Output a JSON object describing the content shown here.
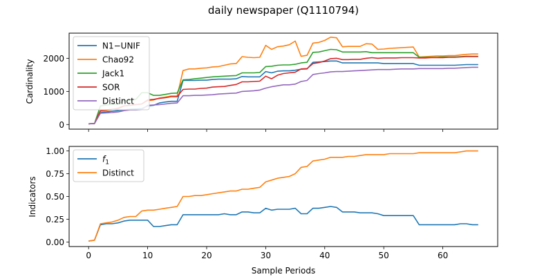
{
  "figure": {
    "title": "daily newspaper (Q1110794)",
    "xlabel": "Sample Periods"
  },
  "colors": {
    "blue": "#1f77b4",
    "orange": "#ff7f0e",
    "green": "#2ca02c",
    "red": "#d62728",
    "purple": "#9467bd"
  },
  "chart_data": [
    {
      "type": "line",
      "title": "daily newspaper (Q1110794)",
      "xlabel": "",
      "ylabel": "Cardinality",
      "xlim": [
        -3.3,
        69.3
      ],
      "ylim": [
        -140,
        2760
      ],
      "xticks": [
        0,
        10,
        20,
        30,
        40,
        50,
        60
      ],
      "xticklabels": [
        "",
        "",
        "",
        "",
        "",
        "",
        ""
      ],
      "yticks": [
        0,
        1000,
        2000
      ],
      "yticklabels": [
        "0",
        "1000",
        "2000"
      ],
      "grid": false,
      "legend_position": "upper-left",
      "x_start": 0,
      "series": [
        {
          "name": "N1−UNIF",
          "color": "#1f77b4",
          "values": [
            20,
            30,
            360,
            380,
            400,
            420,
            440,
            460,
            470,
            480,
            560,
            580,
            650,
            680,
            700,
            700,
            1330,
            1330,
            1330,
            1340,
            1340,
            1360,
            1370,
            1370,
            1370,
            1380,
            1450,
            1440,
            1440,
            1440,
            1600,
            1560,
            1610,
            1620,
            1620,
            1640,
            1670,
            1680,
            1880,
            1890,
            1900,
            1920,
            1920,
            1860,
            1860,
            1860,
            1860,
            1860,
            1860,
            1860,
            1840,
            1840,
            1840,
            1840,
            1840,
            1840,
            1790,
            1790,
            1790,
            1790,
            1790,
            1790,
            1790,
            1800,
            1810,
            1810,
            1810
          ]
        },
        {
          "name": "Chao92",
          "color": "#ff7f0e",
          "values": [
            20,
            30,
            400,
            420,
            450,
            500,
            560,
            580,
            600,
            620,
            720,
            740,
            800,
            830,
            860,
            860,
            1630,
            1680,
            1680,
            1700,
            1710,
            1740,
            1750,
            1790,
            1830,
            1840,
            2050,
            2030,
            2020,
            2030,
            2390,
            2270,
            2350,
            2370,
            2410,
            2520,
            2060,
            2090,
            2460,
            2480,
            2540,
            2640,
            2620,
            2350,
            2360,
            2360,
            2360,
            2440,
            2430,
            2270,
            2280,
            2300,
            2310,
            2320,
            2330,
            2340,
            2040,
            2050,
            2060,
            2070,
            2070,
            2080,
            2080,
            2100,
            2120,
            2130,
            2130
          ]
        },
        {
          "name": "Jack1",
          "color": "#2ca02c",
          "values": [
            20,
            30,
            560,
            590,
            610,
            620,
            720,
            730,
            760,
            960,
            960,
            880,
            880,
            910,
            940,
            950,
            1350,
            1360,
            1380,
            1400,
            1420,
            1440,
            1450,
            1460,
            1470,
            1480,
            1560,
            1560,
            1560,
            1570,
            1750,
            1760,
            1790,
            1800,
            1800,
            1820,
            1860,
            1880,
            2180,
            2190,
            2230,
            2270,
            2260,
            2190,
            2190,
            2190,
            2190,
            2200,
            2170,
            2170,
            2170,
            2170,
            2170,
            2170,
            2170,
            2170,
            2030,
            2030,
            2030,
            2030,
            2040,
            2040,
            2040,
            2050,
            2060,
            2060,
            2060
          ]
        },
        {
          "name": "SOR",
          "color": "#d62728",
          "values": [
            20,
            30,
            420,
            440,
            460,
            480,
            560,
            580,
            600,
            620,
            740,
            760,
            790,
            810,
            840,
            840,
            1060,
            1070,
            1070,
            1090,
            1100,
            1130,
            1140,
            1150,
            1180,
            1210,
            1290,
            1290,
            1300,
            1310,
            1460,
            1380,
            1490,
            1540,
            1560,
            1580,
            1680,
            1690,
            1840,
            1870,
            1920,
            1990,
            2000,
            1960,
            1960,
            1970,
            1970,
            2000,
            2020,
            2000,
            2010,
            2010,
            2010,
            2020,
            2020,
            2020,
            2010,
            2010,
            2020,
            2020,
            2020,
            2030,
            2030,
            2040,
            2050,
            2050,
            2050
          ]
        },
        {
          "name": "Distinct",
          "color": "#9467bd",
          "values": [
            20,
            30,
            340,
            350,
            360,
            380,
            420,
            440,
            440,
            450,
            580,
            590,
            600,
            620,
            640,
            650,
            870,
            870,
            880,
            880,
            890,
            900,
            920,
            930,
            940,
            950,
            1000,
            1010,
            1020,
            1040,
            1100,
            1140,
            1170,
            1200,
            1200,
            1220,
            1300,
            1330,
            1510,
            1540,
            1560,
            1590,
            1600,
            1600,
            1610,
            1620,
            1630,
            1640,
            1650,
            1660,
            1660,
            1660,
            1670,
            1680,
            1680,
            1680,
            1690,
            1690,
            1690,
            1690,
            1690,
            1700,
            1700,
            1710,
            1720,
            1730,
            1730
          ]
        }
      ]
    },
    {
      "type": "line",
      "title": "",
      "xlabel": "Sample Periods",
      "ylabel": "Indicators",
      "xlim": [
        -3.3,
        69.3
      ],
      "ylim": [
        -0.05,
        1.05
      ],
      "xticks": [
        0,
        10,
        20,
        30,
        40,
        50,
        60
      ],
      "xticklabels": [
        "0",
        "10",
        "20",
        "30",
        "40",
        "50",
        "60"
      ],
      "yticks": [
        0,
        0.25,
        0.5,
        0.75,
        1
      ],
      "yticklabels": [
        "0.00",
        "0.25",
        "0.50",
        "0.75",
        "1.00"
      ],
      "grid": false,
      "legend_position": "upper-left",
      "x_start": 0,
      "series": [
        {
          "name": "f1",
          "color": "#1f77b4",
          "values": [
            0.01,
            0.02,
            0.19,
            0.2,
            0.2,
            0.21,
            0.23,
            0.24,
            0.24,
            0.24,
            0.24,
            0.17,
            0.17,
            0.18,
            0.19,
            0.19,
            0.3,
            0.3,
            0.3,
            0.3,
            0.3,
            0.3,
            0.3,
            0.31,
            0.3,
            0.3,
            0.33,
            0.33,
            0.32,
            0.32,
            0.37,
            0.35,
            0.36,
            0.36,
            0.36,
            0.37,
            0.31,
            0.31,
            0.37,
            0.37,
            0.38,
            0.39,
            0.38,
            0.33,
            0.33,
            0.33,
            0.32,
            0.32,
            0.32,
            0.31,
            0.29,
            0.29,
            0.29,
            0.29,
            0.29,
            0.29,
            0.19,
            0.19,
            0.19,
            0.19,
            0.19,
            0.19,
            0.19,
            0.2,
            0.2,
            0.19,
            0.19
          ]
        },
        {
          "name": "Distinct",
          "color": "#ff7f0e",
          "values": [
            0.01,
            0.02,
            0.2,
            0.21,
            0.22,
            0.24,
            0.27,
            0.28,
            0.28,
            0.34,
            0.35,
            0.35,
            0.36,
            0.37,
            0.38,
            0.39,
            0.5,
            0.5,
            0.51,
            0.51,
            0.52,
            0.53,
            0.54,
            0.55,
            0.56,
            0.56,
            0.58,
            0.58,
            0.59,
            0.6,
            0.66,
            0.68,
            0.7,
            0.71,
            0.72,
            0.75,
            0.82,
            0.83,
            0.89,
            0.9,
            0.91,
            0.93,
            0.93,
            0.93,
            0.94,
            0.94,
            0.95,
            0.96,
            0.96,
            0.96,
            0.96,
            0.97,
            0.97,
            0.97,
            0.97,
            0.97,
            0.98,
            0.98,
            0.98,
            0.98,
            0.98,
            0.98,
            0.98,
            0.99,
            1.0,
            1.0,
            1.0
          ]
        }
      ]
    }
  ]
}
